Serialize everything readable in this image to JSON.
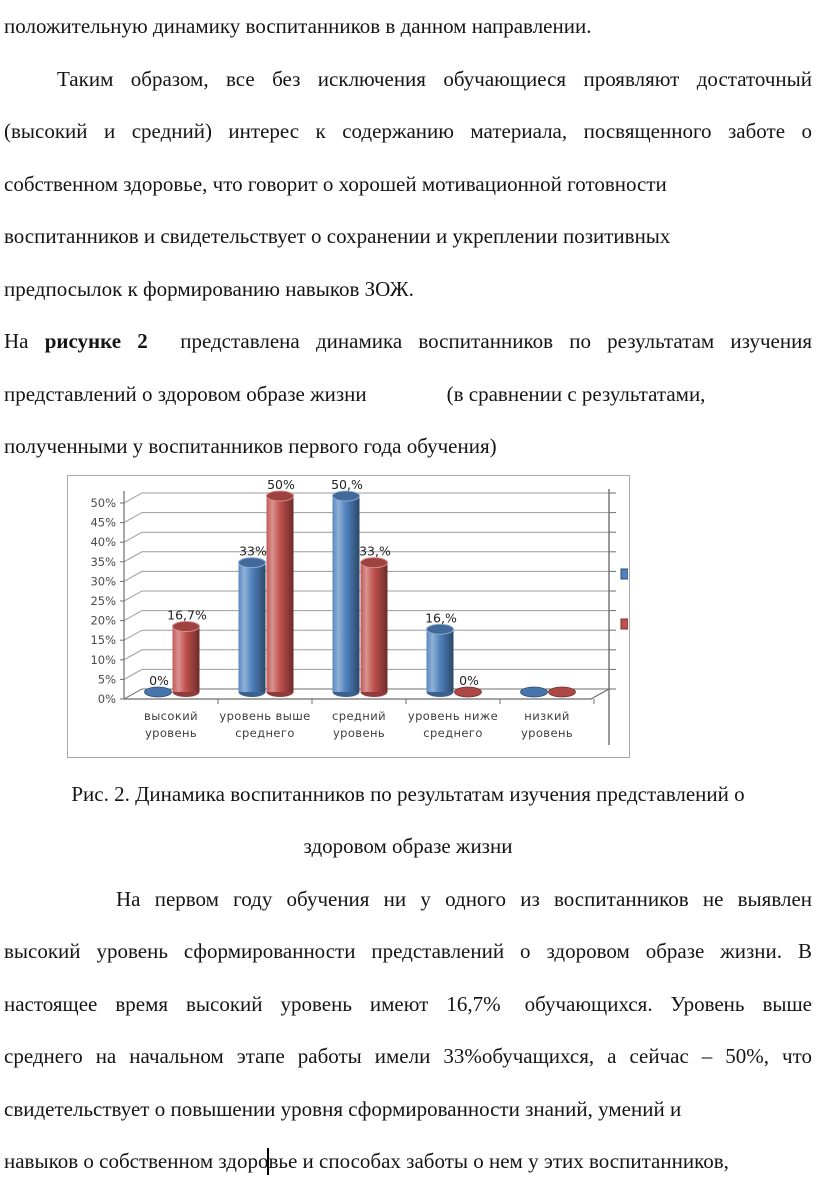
{
  "page": {
    "background": "#ffffff",
    "text_color": "#141414"
  },
  "text": {
    "l1": "положительную динамику воспитанников в данном направлении.",
    "l2": "Таким образом, все без исключения обучающиеся проявляют достаточный",
    "l3": "(высокий и средний) интерес к содержанию материала, посвященного заботе о",
    "l4": "собственном здоровье, что говорит о хорошей мотивационной готовности",
    "l5": "воспитанников и свидетельствует о сохранении и укреплении позитивных",
    "l6": "предпосылок к формированию навыков ЗОЖ.",
    "l7_prefix": "На",
    "l7_bold": "рисунке 2",
    "l7_rest": "представлена динамика воспитанников по результатам изучения",
    "l8_a": "представлений о здоровом образе жизни",
    "l8_b": "(в сравнении с результатами,",
    "l9": "полученными у воспитанников первого года обучения)",
    "cap1": "Рис. 2. Динамика воспитанников по результатам изучения представлений о",
    "cap2": "здоровом образе жизни",
    "l12": "На первом году обучения ни у одного из воспитанников не выявлен",
    "l13": "высокий уровень сформированности представлений о здоровом образе жизни. В",
    "l14_a": "настоящее время высокий уровень имеют 16,7%",
    "l14_b": "обучающихся. Уровень выше",
    "l15": "среднего на начальном этапе работы имели 33%обучащихся, а сейчас – 50%, что",
    "l16": "свидетельствует о повышении уровня сформированности знаний, умений и",
    "l17": "навыков о собственном здоровье и способах заботы о нем у этих воспитанников,"
  },
  "chart_data": {
    "type": "bar",
    "style": "3d-cylinder",
    "categories": [
      {
        "line1": "высокий",
        "line2": "уровень"
      },
      {
        "line1": "уровень выше",
        "line2": "среднего"
      },
      {
        "line1": "средний",
        "line2": "уровень"
      },
      {
        "line1": "уровень ниже",
        "line2": "среднего"
      },
      {
        "line1": "низкий",
        "line2": "уровень"
      }
    ],
    "series": [
      {
        "color": "#4F81BD",
        "values": [
          0,
          33,
          50,
          16,
          0
        ],
        "labels": [
          "0%",
          "33%",
          "50,%",
          "16,%",
          ""
        ]
      },
      {
        "color": "#C0504D",
        "values": [
          16.7,
          50,
          33,
          0,
          0
        ],
        "labels": [
          "16,7%",
          "50%",
          "33,%",
          "0%",
          ""
        ]
      }
    ],
    "ylim": [
      0,
      50
    ],
    "ytick_step": 5,
    "ytick_format": "%",
    "grid": true,
    "legend_chips": [
      "#4F81BD",
      "#C0504D"
    ],
    "legend_position": "right-cut-off",
    "axis_label_color": "#4b4b4b",
    "category_label_color": "#3e3e3e",
    "data_label_color": "#222222",
    "gridline_color": "#9c9c9c",
    "axis_line_color": "#6e6e6e"
  }
}
